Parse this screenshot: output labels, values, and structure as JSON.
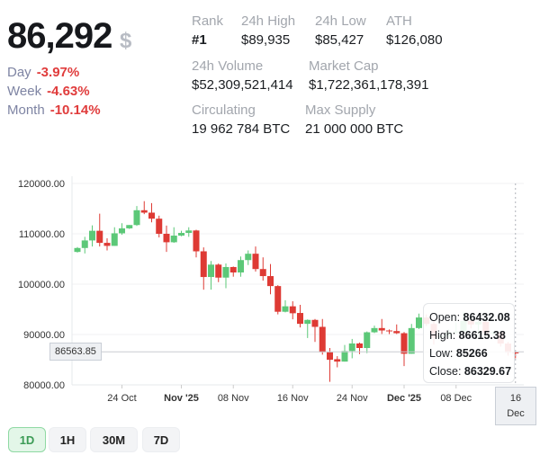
{
  "header": {
    "price": "86,292",
    "currency": "$",
    "changes": [
      {
        "label": "Day",
        "value": "-3.97%"
      },
      {
        "label": "Week",
        "value": "-4.63%"
      },
      {
        "label": "Month",
        "value": "-10.14%"
      }
    ]
  },
  "stats": {
    "rank": {
      "label": "Rank",
      "value": "#1"
    },
    "high24": {
      "label": "24h High",
      "value": "$89,935"
    },
    "low24": {
      "label": "24h Low",
      "value": "$85,427"
    },
    "ath": {
      "label": "ATH",
      "value": "$126,080"
    },
    "volume": {
      "label": "24h Volume",
      "value": "$52,309,521,414"
    },
    "mcap": {
      "label": "Market Cap",
      "value": "$1,722,361,178,391"
    },
    "circ": {
      "label": "Circulating",
      "value": "19 962 784 BTC"
    },
    "max": {
      "label": "Max Supply",
      "value": "21 000 000 BTC"
    }
  },
  "colors": {
    "up": "#5cc878",
    "down": "#de3a34",
    "negative_change": "#e03c3c",
    "active_timeframe": "#3b9b55"
  },
  "timeframes": [
    {
      "label": "1D",
      "active": true
    },
    {
      "label": "1H"
    },
    {
      "label": "30M"
    },
    {
      "label": "7D"
    }
  ],
  "crosshair": {
    "price_label": "86563.85",
    "date_label_day": "16",
    "date_label_month": "Dec",
    "tooltip": {
      "open_label": "Open:",
      "open": "86432.08",
      "high_label": "High:",
      "high": "86615.38",
      "low_label": "Low:",
      "low": "85266",
      "close_label": "Close:",
      "close": "86329.67"
    }
  },
  "chart_data": {
    "type": "candlestick",
    "ylim": [
      80000,
      120000
    ],
    "y_ticks": [
      "120000.00",
      "110000.00",
      "100000.00",
      "90000.00",
      "80000.00"
    ],
    "x_ticks": [
      {
        "label": "24 Oct",
        "date": "2025-10-24"
      },
      {
        "label": "Nov '25",
        "date": "2025-11-01",
        "bold": true
      },
      {
        "label": "08 Nov",
        "date": "2025-11-08"
      },
      {
        "label": "16 Nov",
        "date": "2025-11-16"
      },
      {
        "label": "24 Nov",
        "date": "2025-11-24"
      },
      {
        "label": "Dec '25",
        "date": "2025-12-01",
        "bold": true
      },
      {
        "label": "08 Dec",
        "date": "2025-12-08"
      }
    ],
    "grid": true,
    "start_date": "2025-10-18",
    "ohlc": [
      [
        106400,
        107360,
        106280,
        107180
      ],
      [
        107180,
        109400,
        106100,
        108680
      ],
      [
        108680,
        111680,
        107480,
        110600
      ],
      [
        110600,
        114000,
        107480,
        108200
      ],
      [
        108200,
        109100,
        106700,
        107600
      ],
      [
        107600,
        111300,
        107600,
        110100
      ],
      [
        110100,
        112100,
        109800,
        111080
      ],
      [
        111080,
        111740,
        110960,
        111740
      ],
      [
        111740,
        115520,
        111560,
        114680
      ],
      [
        114680,
        116480,
        113900,
        114200
      ],
      [
        114200,
        116100,
        112280,
        113000
      ],
      [
        113000,
        113600,
        109280,
        110000
      ],
      [
        110000,
        111620,
        106400,
        108320
      ],
      [
        108320,
        111300,
        108200,
        109640
      ],
      [
        109640,
        110600,
        109500,
        110180
      ],
      [
        110180,
        111300,
        109400,
        110660
      ],
      [
        110660,
        110800,
        105320,
        106520
      ],
      [
        106520,
        107300,
        98900,
        101420
      ],
      [
        101420,
        104600,
        98900,
        103880
      ],
      [
        103880,
        104100,
        100400,
        101300
      ],
      [
        101300,
        104100,
        99200,
        103400
      ],
      [
        103400,
        103500,
        101480,
        102320
      ],
      [
        102320,
        105500,
        101480,
        104780
      ],
      [
        104780,
        106700,
        103800,
        106040
      ],
      [
        106040,
        107480,
        102500,
        103000
      ],
      [
        103000,
        105320,
        100700,
        101600
      ],
      [
        101600,
        104000,
        98000,
        99620
      ],
      [
        99620,
        99800,
        94000,
        94520
      ],
      [
        94520,
        96800,
        94400,
        95600
      ],
      [
        95600,
        96600,
        93020,
        94220
      ],
      [
        94280,
        95900,
        91400,
        92120
      ],
      [
        92120,
        93000,
        89300,
        92900
      ],
      [
        92900,
        93080,
        88520,
        91520
      ],
      [
        91520,
        93080,
        86000,
        86480
      ],
      [
        86480,
        87320,
        80600,
        84980
      ],
      [
        85100,
        85700,
        83480,
        84620
      ],
      [
        84620,
        87920,
        84620,
        86720
      ],
      [
        86720,
        89120,
        85280,
        88220
      ],
      [
        88220,
        88400,
        86120,
        87320
      ],
      [
        87320,
        90600,
        86300,
        90440
      ],
      [
        90440,
        91760,
        90300,
        91280
      ],
      [
        91280,
        93080,
        90100,
        90800
      ],
      [
        90800,
        91000,
        90100,
        90680
      ],
      [
        90680,
        92000,
        90100,
        90260
      ],
      [
        90260,
        90500,
        83720,
        86180
      ],
      [
        86180,
        92100,
        86180,
        91280
      ],
      [
        91280,
        94160,
        91100,
        93380
      ],
      [
        93380,
        94000,
        91700,
        92100
      ],
      [
        92100,
        92700,
        88000,
        89400
      ],
      [
        89400,
        90200,
        89000,
        89700
      ],
      [
        89700,
        91000,
        89300,
        90400
      ],
      [
        90400,
        92400,
        90000,
        90600
      ],
      [
        90600,
        94500,
        90300,
        92700
      ],
      [
        92700,
        93300,
        91200,
        92000
      ],
      [
        92000,
        92800,
        89500,
        92500
      ],
      [
        92500,
        92700,
        89800,
        90300
      ],
      [
        90300,
        90700,
        89800,
        90400
      ],
      [
        90400,
        90600,
        87600,
        88200
      ],
      [
        88200,
        88500,
        85800,
        86400
      ],
      [
        86432.08,
        86615.38,
        85266,
        86329.67
      ]
    ]
  }
}
